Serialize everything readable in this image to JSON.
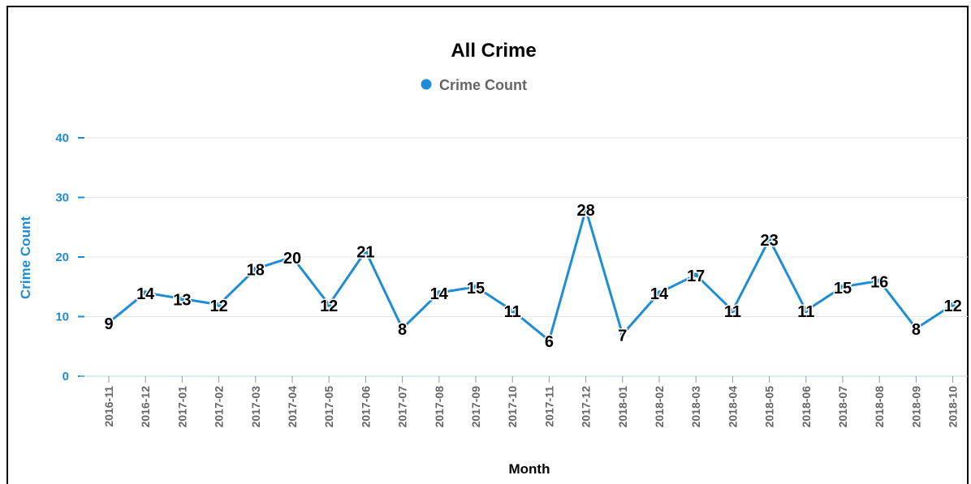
{
  "chart_data": {
    "type": "line",
    "title": "All Crime",
    "xlabel": "Month",
    "ylabel": "Crime Count",
    "ylim": [
      0,
      40
    ],
    "yticks": [
      "0",
      "10",
      "20",
      "30",
      "40"
    ],
    "grid": true,
    "legend_position": "top-center",
    "categories": [
      "2016-11",
      "2016-12",
      "2017-01",
      "2017-02",
      "2017-03",
      "2017-04",
      "2017-05",
      "2017-06",
      "2017-07",
      "2017-08",
      "2017-09",
      "2017-10",
      "2017-11",
      "2017-12",
      "2018-01",
      "2018-02",
      "2018-03",
      "2018-04",
      "2018-05",
      "2018-06",
      "2018-07",
      "2018-08",
      "2018-09",
      "2018-10"
    ],
    "series": [
      {
        "name": "Crime Count",
        "color": "#1f8dd6",
        "values": [
          9,
          14,
          13,
          12,
          18,
          20,
          12,
          21,
          8,
          14,
          15,
          11,
          6,
          28,
          7,
          14,
          17,
          11,
          23,
          11,
          15,
          16,
          8,
          12
        ]
      }
    ]
  },
  "colors": {
    "series": "#1f8dd6",
    "axis_text": "#666666",
    "grid": "#e6e6e6"
  }
}
